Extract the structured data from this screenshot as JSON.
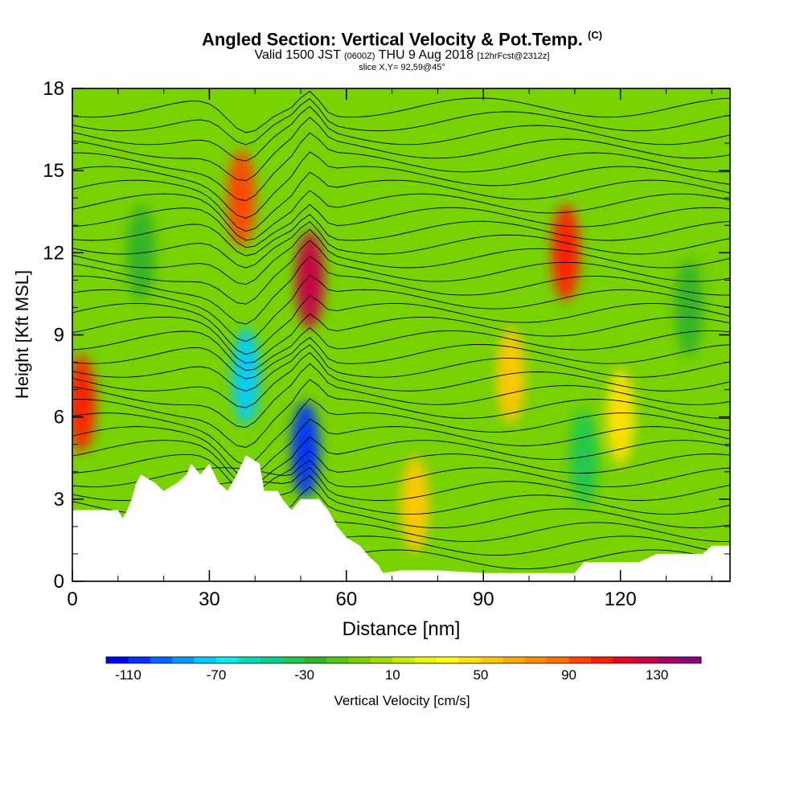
{
  "chart_data": {
    "type": "heatmap",
    "title": "Angled Section: Vertical Velocity & Pot.Temp.",
    "title_suffix": "(C)",
    "subtitle_main": "Valid 1500 JST",
    "subtitle_utc": "(0600Z)",
    "subtitle_date": "THU 9 Aug 2018",
    "subtitle_fcst": "[12hrFcst@2312z]",
    "slice_text": "slice X,Y= 92,59@45°",
    "xlabel": "Distance [nm]",
    "ylabel": "Height [Kft MSL]",
    "xlim": [
      0,
      144
    ],
    "ylim": [
      0,
      18
    ],
    "x_ticks": [
      "0",
      "30",
      "60",
      "90",
      "120"
    ],
    "x_tick_values": [
      0,
      30,
      60,
      90,
      120
    ],
    "y_ticks": [
      "0",
      "3",
      "6",
      "9",
      "12",
      "15",
      "18"
    ],
    "y_tick_values": [
      0,
      3,
      6,
      9,
      12,
      15,
      18
    ],
    "colorbar": {
      "label": "Vertical Velocity [cm/s]",
      "min": -120,
      "max": 150,
      "step": 10,
      "tick_labels": [
        "-110",
        "-70",
        "-30",
        "10",
        "50",
        "90",
        "130"
      ],
      "tick_values": [
        -110,
        -70,
        -30,
        10,
        50,
        90,
        130
      ],
      "colors": [
        "#0000ff",
        "#0033ff",
        "#0066ff",
        "#0099ff",
        "#00ccff",
        "#00eeee",
        "#00dcb4",
        "#00d28c",
        "#20c850",
        "#32b428",
        "#50c814",
        "#78d200",
        "#a0dc00",
        "#c8eb00",
        "#eaf700",
        "#ffff00",
        "#ffe100",
        "#ffc800",
        "#ffaa00",
        "#ff8c00",
        "#ff6e00",
        "#ff4600",
        "#ff1e00",
        "#e60028",
        "#c80046",
        "#a00064",
        "#8c0082"
      ]
    },
    "features": [
      {
        "kind": "updraft",
        "x": 2,
        "y": 6.5,
        "value": 100
      },
      {
        "kind": "updraft",
        "x": 37,
        "y": 14,
        "value": 90
      },
      {
        "kind": "updraft",
        "x": 52,
        "y": 11,
        "value": 120
      },
      {
        "kind": "updraft",
        "x": 108,
        "y": 12,
        "value": 100
      },
      {
        "kind": "updraft",
        "x": 75,
        "y": 2.8,
        "value": 50
      },
      {
        "kind": "updraft",
        "x": 96,
        "y": 7.5,
        "value": 50
      },
      {
        "kind": "updraft",
        "x": 120,
        "y": 6,
        "value": 40
      },
      {
        "kind": "downdraft",
        "x": 38,
        "y": 7.5,
        "value": -80
      },
      {
        "kind": "downdraft",
        "x": 51,
        "y": 4.8,
        "value": -110
      },
      {
        "kind": "downdraft",
        "x": 112,
        "y": 4.5,
        "value": -40
      },
      {
        "kind": "downdraft",
        "x": 15,
        "y": 12,
        "value": -30
      },
      {
        "kind": "downdraft",
        "x": 135,
        "y": 10,
        "value": -30
      }
    ],
    "terrain": [
      [
        0,
        2.6
      ],
      [
        10,
        2.6
      ],
      [
        11,
        2.3
      ],
      [
        12,
        2.6
      ],
      [
        13,
        3
      ],
      [
        14,
        3.6
      ],
      [
        15,
        3.9
      ],
      [
        18,
        3.6
      ],
      [
        20,
        3.3
      ],
      [
        23,
        3.6
      ],
      [
        25,
        3.9
      ],
      [
        26,
        4.3
      ],
      [
        28,
        3.9
      ],
      [
        30,
        4.3
      ],
      [
        32,
        3.6
      ],
      [
        34,
        3.3
      ],
      [
        36,
        3.9
      ],
      [
        38,
        4.6
      ],
      [
        41,
        4.3
      ],
      [
        42,
        3.3
      ],
      [
        45,
        3.3
      ],
      [
        46,
        3
      ],
      [
        48,
        2.6
      ],
      [
        50,
        3
      ],
      [
        54,
        3
      ],
      [
        56,
        2.6
      ],
      [
        58,
        2
      ],
      [
        60,
        1.6
      ],
      [
        63,
        1.3
      ],
      [
        65,
        0.9
      ],
      [
        67,
        0.6
      ],
      [
        68,
        0.3
      ],
      [
        72,
        0.4
      ],
      [
        80,
        0.4
      ],
      [
        90,
        0.3
      ],
      [
        100,
        0.3
      ],
      [
        110,
        0.3
      ],
      [
        112,
        0.7
      ],
      [
        124,
        0.7
      ],
      [
        128,
        1
      ],
      [
        138,
        1
      ],
      [
        140,
        1.3
      ],
      [
        144,
        1.3
      ]
    ]
  }
}
